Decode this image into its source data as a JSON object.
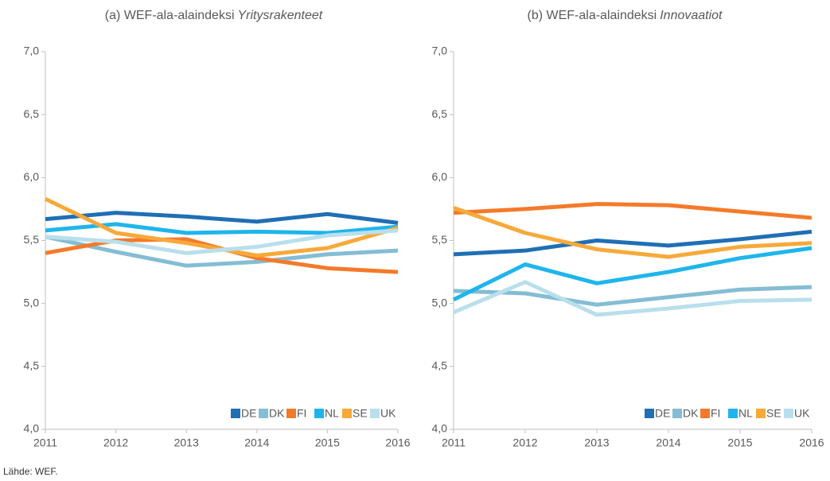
{
  "chart_data": [
    {
      "type": "line",
      "title": [
        "(a) WEF-ala-alaindeksi",
        "Yritysrakenteet"
      ],
      "x": [
        2011,
        2012,
        2013,
        2014,
        2015,
        2016
      ],
      "xlim": [
        2011,
        2016
      ],
      "xticks": [
        2011,
        2012,
        2013,
        2014,
        2015,
        2016
      ],
      "ylim": [
        4,
        7
      ],
      "yticks": [
        {
          "value": 4,
          "label": "4,0"
        },
        {
          "value": 4.5,
          "label": "4,5"
        },
        {
          "value": 5,
          "label": "5,0"
        },
        {
          "value": 5.5,
          "label": "5,5"
        },
        {
          "value": 6,
          "label": "6,0"
        },
        {
          "value": 6.5,
          "label": "6,5"
        },
        {
          "value": 7,
          "label": "7,0"
        }
      ],
      "legend": "lower right",
      "series": [
        {
          "name": "DE",
          "color": "#1f6fb5",
          "values": [
            5.67,
            5.72,
            5.69,
            5.65,
            5.71,
            5.64
          ]
        },
        {
          "name": "DK",
          "color": "#84bdd4",
          "values": [
            5.53,
            5.41,
            5.3,
            5.33,
            5.39,
            5.42
          ]
        },
        {
          "name": "FI",
          "color": "#f47a2a",
          "values": [
            5.4,
            5.5,
            5.51,
            5.36,
            5.28,
            5.25
          ]
        },
        {
          "name": "NL",
          "color": "#1fb5ec",
          "values": [
            5.58,
            5.63,
            5.56,
            5.57,
            5.56,
            5.61
          ]
        },
        {
          "name": "SE",
          "color": "#f7a93a",
          "values": [
            5.83,
            5.56,
            5.48,
            5.38,
            5.44,
            5.6
          ]
        },
        {
          "name": "UK",
          "color": "#b9dfec",
          "values": [
            5.53,
            5.49,
            5.4,
            5.45,
            5.54,
            5.58
          ]
        }
      ]
    },
    {
      "type": "line",
      "title": [
        "(b) WEF-ala-alaindeksi",
        "Innovaatiot"
      ],
      "x": [
        2011,
        2012,
        2013,
        2014,
        2015,
        2016
      ],
      "xlim": [
        2011,
        2016
      ],
      "xticks": [
        2011,
        2012,
        2013,
        2014,
        2015,
        2016
      ],
      "ylim": [
        4,
        7
      ],
      "yticks": [
        {
          "value": 4,
          "label": "4,0"
        },
        {
          "value": 4.5,
          "label": "4,5"
        },
        {
          "value": 5,
          "label": "5,0"
        },
        {
          "value": 5.5,
          "label": "5,5"
        },
        {
          "value": 6,
          "label": "6,0"
        },
        {
          "value": 6.5,
          "label": "6,5"
        },
        {
          "value": 7,
          "label": "7,0"
        }
      ],
      "legend": "lower right",
      "series": [
        {
          "name": "DE",
          "color": "#1f6fb5",
          "values": [
            5.39,
            5.42,
            5.5,
            5.46,
            5.51,
            5.57
          ]
        },
        {
          "name": "DK",
          "color": "#84bdd4",
          "values": [
            5.1,
            5.08,
            4.99,
            5.05,
            5.11,
            5.13
          ]
        },
        {
          "name": "FI",
          "color": "#f47a2a",
          "values": [
            5.72,
            5.75,
            5.79,
            5.78,
            5.73,
            5.68
          ]
        },
        {
          "name": "NL",
          "color": "#1fb5ec",
          "values": [
            5.03,
            5.31,
            5.16,
            5.25,
            5.36,
            5.44
          ]
        },
        {
          "name": "SE",
          "color": "#f7a93a",
          "values": [
            5.76,
            5.56,
            5.43,
            5.37,
            5.45,
            5.48
          ]
        },
        {
          "name": "UK",
          "color": "#b9dfec",
          "values": [
            4.93,
            5.17,
            4.91,
            4.96,
            5.02,
            5.03
          ]
        }
      ]
    }
  ],
  "source": "Lähde: WEF."
}
